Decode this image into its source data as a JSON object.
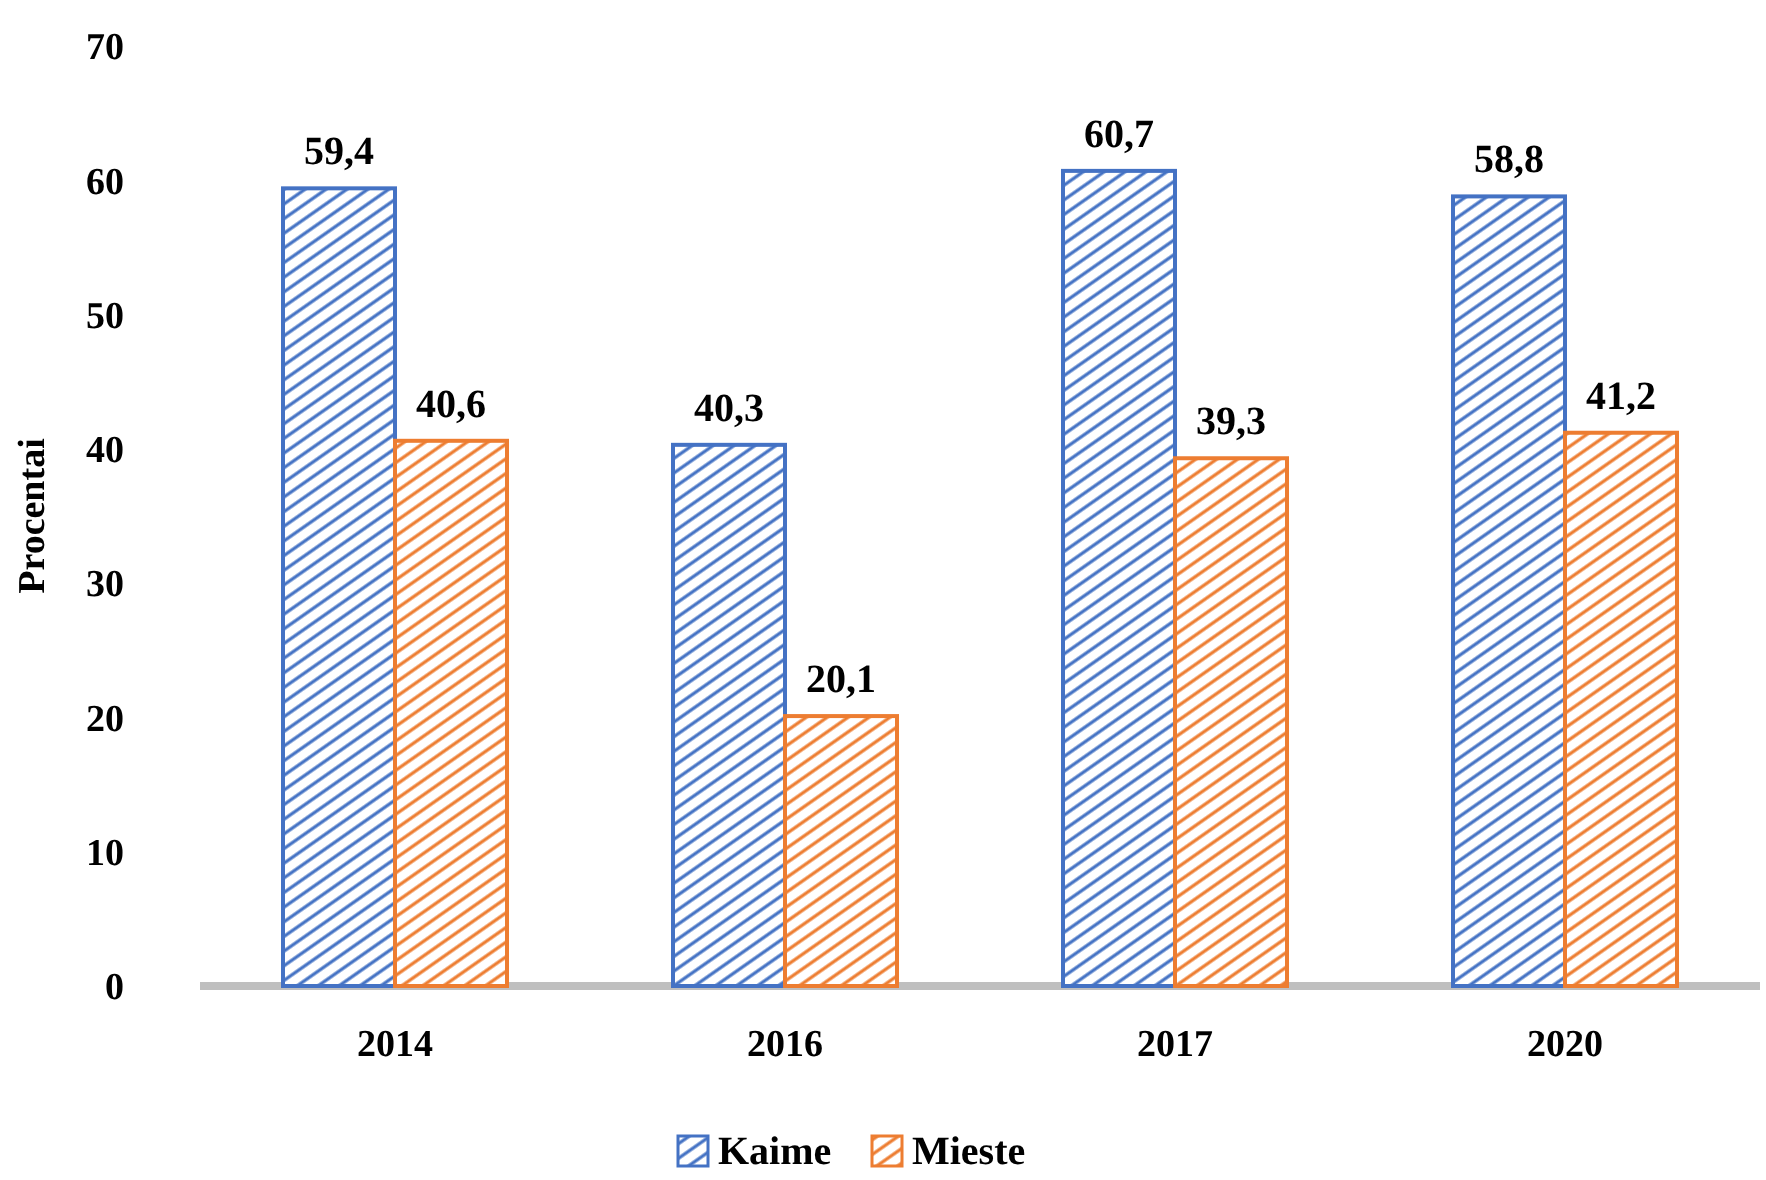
{
  "chart_data": {
    "type": "bar",
    "ylabel": "Procentai",
    "categories": [
      "2014",
      "2016",
      "2017",
      "2020"
    ],
    "series": [
      {
        "name": "Kaime",
        "color": "#4472c4",
        "values": [
          59.4,
          40.3,
          60.7,
          58.8
        ],
        "value_labels": [
          "59,4",
          "40,3",
          "60,7",
          "58,8"
        ]
      },
      {
        "name": "Mieste",
        "color": "#ed7d31",
        "values": [
          40.6,
          20.1,
          39.3,
          41.2
        ],
        "value_labels": [
          "40,6",
          "20,1",
          "39,3",
          "41,2"
        ]
      }
    ],
    "ylim": [
      0,
      70
    ],
    "yticks": [
      0,
      10,
      20,
      30,
      40,
      50,
      60,
      70
    ],
    "grid": false,
    "legend": "bottom"
  }
}
